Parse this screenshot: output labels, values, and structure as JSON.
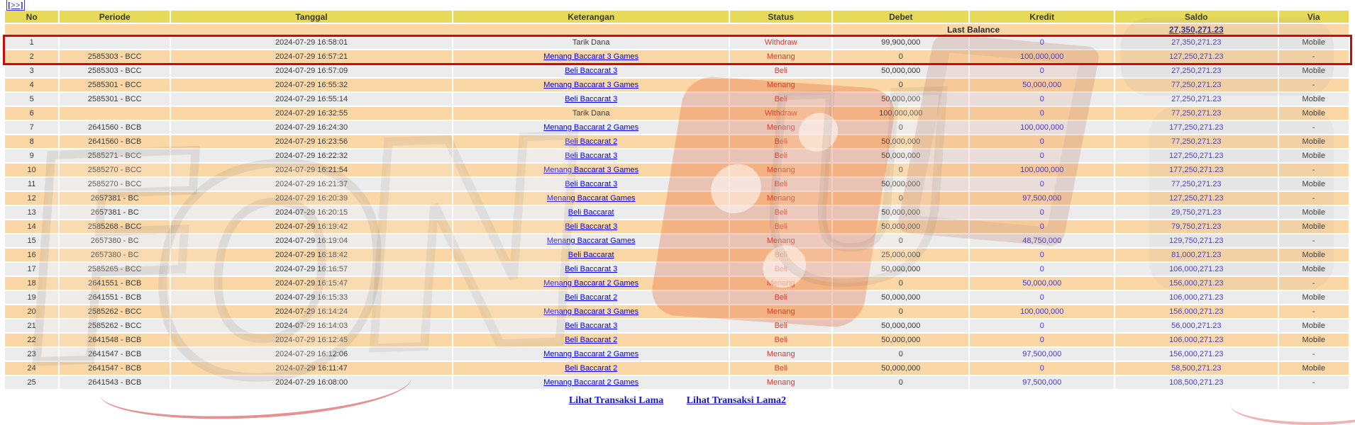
{
  "page": {
    "top_link": "[>>]"
  },
  "table": {
    "headers": [
      "No",
      "Periode",
      "Tanggal",
      "Keterangan",
      "Status",
      "Debet",
      "Kredit",
      "Saldo",
      "Via"
    ],
    "last_balance": {
      "label": "Last Balance",
      "value": "27,350,271.23"
    },
    "rows": [
      {
        "no": "1",
        "periode": "",
        "tanggal": "2024-07-29 16:58:01",
        "keterangan": "Tarik Dana",
        "link": false,
        "visited": false,
        "status": "Withdraw",
        "debet": "99,900,000",
        "kredit": "0",
        "saldo": "27,350,271.23",
        "via": "Mobile"
      },
      {
        "no": "2",
        "periode": "2585303 - BCC",
        "tanggal": "2024-07-29 16:57:21",
        "keterangan": "Menang Baccarat 3 Games",
        "link": true,
        "visited": false,
        "status": "Menang",
        "debet": "0",
        "kredit": "100,000,000",
        "saldo": "127,250,271.23",
        "via": "-"
      },
      {
        "no": "3",
        "periode": "2585303 - BCC",
        "tanggal": "2024-07-29 16:57:09",
        "keterangan": "Beli Baccarat 3",
        "link": true,
        "visited": false,
        "status": "Beli",
        "debet": "50,000,000",
        "kredit": "0",
        "saldo": "27,250,271.23",
        "via": "Mobile"
      },
      {
        "no": "4",
        "periode": "2585301 - BCC",
        "tanggal": "2024-07-29 16:55:32",
        "keterangan": "Menang Baccarat 3 Games",
        "link": true,
        "visited": false,
        "status": "Menang",
        "debet": "0",
        "kredit": "50,000,000",
        "saldo": "77,250,271.23",
        "via": "-"
      },
      {
        "no": "5",
        "periode": "2585301 - BCC",
        "tanggal": "2024-07-29 16:55:14",
        "keterangan": "Beli Baccarat 3",
        "link": true,
        "visited": false,
        "status": "Beli",
        "debet": "50,000,000",
        "kredit": "0",
        "saldo": "27,250,271.23",
        "via": "Mobile"
      },
      {
        "no": "6",
        "periode": "",
        "tanggal": "2024-07-29 16:32:55",
        "keterangan": "Tarik Dana",
        "link": false,
        "visited": false,
        "status": "Withdraw",
        "debet": "100,000,000",
        "kredit": "0",
        "saldo": "77,250,271.23",
        "via": "Mobile"
      },
      {
        "no": "7",
        "periode": "2641560 - BCB",
        "tanggal": "2024-07-29 16:24:30",
        "keterangan": "Menang Baccarat 2 Games",
        "link": true,
        "visited": false,
        "status": "Menang",
        "debet": "0",
        "kredit": "100,000,000",
        "saldo": "177,250,271.23",
        "via": "-"
      },
      {
        "no": "8",
        "periode": "2641560 - BCB",
        "tanggal": "2024-07-29 16:23:56",
        "keterangan": "Beli Baccarat 2",
        "link": true,
        "visited": false,
        "status": "Beli",
        "debet": "50,000,000",
        "kredit": "0",
        "saldo": "77,250,271.23",
        "via": "Mobile"
      },
      {
        "no": "9",
        "periode": "2585271 - BCC",
        "tanggal": "2024-07-29 16:22:32",
        "keterangan": "Beli Baccarat 3",
        "link": true,
        "visited": false,
        "status": "Beli",
        "debet": "50,000,000",
        "kredit": "0",
        "saldo": "127,250,271.23",
        "via": "Mobile"
      },
      {
        "no": "10",
        "periode": "2585270 - BCC",
        "tanggal": "2024-07-29 16:21:54",
        "keterangan": "Menang Baccarat 3 Games",
        "link": true,
        "visited": false,
        "status": "Menang",
        "debet": "0",
        "kredit": "100,000,000",
        "saldo": "177,250,271.23",
        "via": "-"
      },
      {
        "no": "11",
        "periode": "2585270 - BCC",
        "tanggal": "2024-07-29 16:21:37",
        "keterangan": "Beli Baccarat 3",
        "link": true,
        "visited": false,
        "status": "Beli",
        "debet": "50,000,000",
        "kredit": "0",
        "saldo": "77,250,271.23",
        "via": "Mobile"
      },
      {
        "no": "12",
        "periode": "2657381 - BC",
        "tanggal": "2024-07-29 16:20:39",
        "keterangan": "Menang Baccarat Games",
        "link": true,
        "visited": true,
        "status": "Menang",
        "debet": "0",
        "kredit": "97,500,000",
        "saldo": "127,250,271.23",
        "via": "-"
      },
      {
        "no": "13",
        "periode": "2657381 - BC",
        "tanggal": "2024-07-29 16:20:15",
        "keterangan": "Beli Baccarat",
        "link": true,
        "visited": false,
        "status": "Beli",
        "debet": "50,000,000",
        "kredit": "0",
        "saldo": "29,750,271.23",
        "via": "Mobile"
      },
      {
        "no": "14",
        "periode": "2585268 - BCC",
        "tanggal": "2024-07-29 16:19:42",
        "keterangan": "Beli Baccarat 3",
        "link": true,
        "visited": false,
        "status": "Beli",
        "debet": "50,000,000",
        "kredit": "0",
        "saldo": "79,750,271.23",
        "via": "Mobile"
      },
      {
        "no": "15",
        "periode": "2657380 - BC",
        "tanggal": "2024-07-29 16:19:04",
        "keterangan": "Menang Baccarat Games",
        "link": true,
        "visited": true,
        "status": "Menang",
        "debet": "0",
        "kredit": "48,750,000",
        "saldo": "129,750,271.23",
        "via": "-"
      },
      {
        "no": "16",
        "periode": "2657380 - BC",
        "tanggal": "2024-07-29 16:18:42",
        "keterangan": "Beli Baccarat",
        "link": true,
        "visited": false,
        "status": "Beli",
        "debet": "25,000,000",
        "kredit": "0",
        "saldo": "81,000,271.23",
        "via": "Mobile"
      },
      {
        "no": "17",
        "periode": "2585265 - BCC",
        "tanggal": "2024-07-29 16:16:57",
        "keterangan": "Beli Baccarat 3",
        "link": true,
        "visited": false,
        "status": "Beli",
        "debet": "50,000,000",
        "kredit": "0",
        "saldo": "106,000,271.23",
        "via": "Mobile"
      },
      {
        "no": "18",
        "periode": "2641551 - BCB",
        "tanggal": "2024-07-29 16:15:47",
        "keterangan": "Menang Baccarat 2 Games",
        "link": true,
        "visited": false,
        "status": "Menang",
        "debet": "0",
        "kredit": "50,000,000",
        "saldo": "156,000,271.23",
        "via": "-"
      },
      {
        "no": "19",
        "periode": "2641551 - BCB",
        "tanggal": "2024-07-29 16:15:33",
        "keterangan": "Beli Baccarat 2",
        "link": true,
        "visited": false,
        "status": "Beli",
        "debet": "50,000,000",
        "kredit": "0",
        "saldo": "106,000,271.23",
        "via": "Mobile"
      },
      {
        "no": "20",
        "periode": "2585262 - BCC",
        "tanggal": "2024-07-29 16:14:24",
        "keterangan": "Menang Baccarat 3 Games",
        "link": true,
        "visited": true,
        "status": "Menang",
        "debet": "0",
        "kredit": "100,000,000",
        "saldo": "156,000,271.23",
        "via": "-"
      },
      {
        "no": "21",
        "periode": "2585262 - BCC",
        "tanggal": "2024-07-29 16:14:03",
        "keterangan": "Beli Baccarat 3",
        "link": true,
        "visited": false,
        "status": "Beli",
        "debet": "50,000,000",
        "kredit": "0",
        "saldo": "56,000,271.23",
        "via": "Mobile"
      },
      {
        "no": "22",
        "periode": "2641548 - BCB",
        "tanggal": "2024-07-29 16:12:45",
        "keterangan": "Beli Baccarat 2",
        "link": true,
        "visited": false,
        "status": "Beli",
        "debet": "50,000,000",
        "kredit": "0",
        "saldo": "106,000,271.23",
        "via": "Mobile"
      },
      {
        "no": "23",
        "periode": "2641547 - BCB",
        "tanggal": "2024-07-29 16:12:06",
        "keterangan": "Menang Baccarat 2 Games",
        "link": true,
        "visited": false,
        "status": "Menang",
        "debet": "0",
        "kredit": "97,500,000",
        "saldo": "156,000,271.23",
        "via": "-"
      },
      {
        "no": "24",
        "periode": "2641547 - BCB",
        "tanggal": "2024-07-29 16:11:47",
        "keterangan": "Beli Baccarat 2",
        "link": true,
        "visited": false,
        "status": "Beli",
        "debet": "50,000,000",
        "kredit": "0",
        "saldo": "58,500,271.23",
        "via": "Mobile"
      },
      {
        "no": "25",
        "periode": "2641543 - BCB",
        "tanggal": "2024-07-29 16:08:00",
        "keterangan": "Menang Baccarat 2 Games",
        "link": true,
        "visited": false,
        "status": "Menang",
        "debet": "0",
        "kredit": "97,500,000",
        "saldo": "108,500,271.23",
        "via": "-"
      }
    ],
    "footer_links": [
      "Lihat Transaksi Lama",
      "Lihat Transaksi Lama2"
    ]
  },
  "colors": {
    "header_bg": "#e7da58",
    "row_gray": "#ececec",
    "row_peach": "#fbd7a6",
    "highlight_border": "#c50d0d",
    "status_text": "#da3a2e",
    "link_blue": "#4343cf",
    "link_visited": "#7a3db5",
    "saldo_text": "#4a41b8",
    "last_balance_value": "#2f2f9d"
  },
  "watermark": {
    "glyphs": [
      "F",
      "O",
      "N",
      "U"
    ],
    "accent_color": "#e0481c"
  }
}
